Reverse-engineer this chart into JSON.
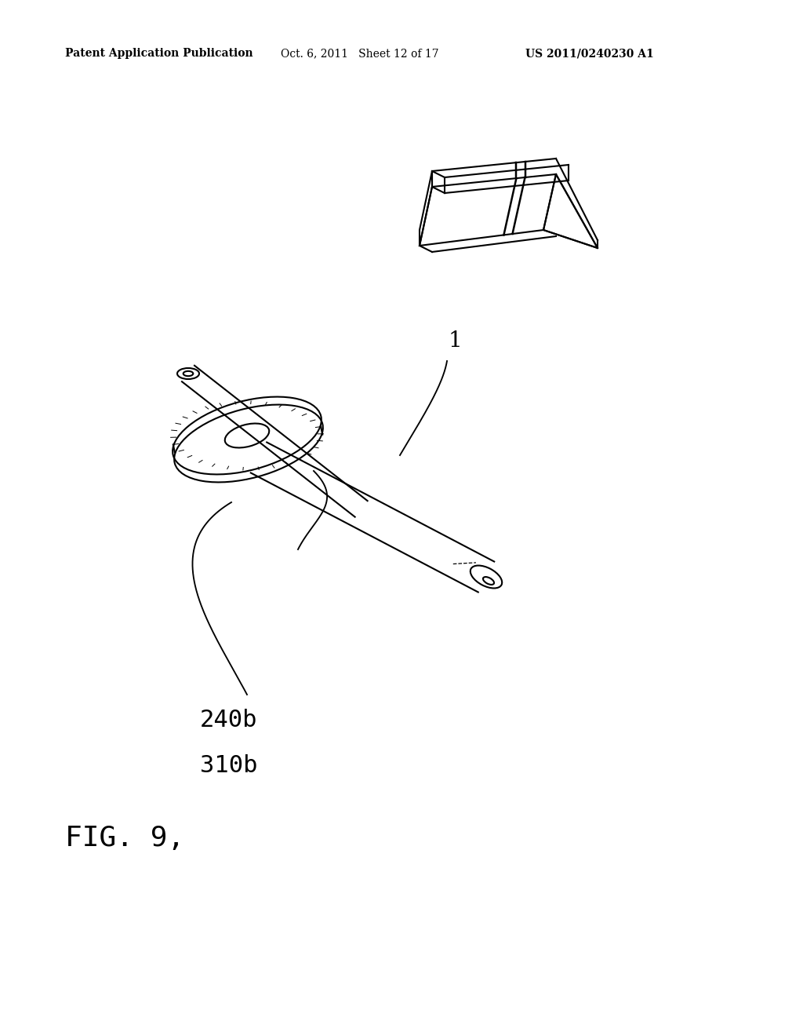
{
  "background_color": "#ffffff",
  "header_left": "Patent Application Publication",
  "header_center": "Oct. 6, 2011   Sheet 12 of 17",
  "header_right": "US 2011/0240230 A1",
  "header_fontsize": 10,
  "label_240b": "240b",
  "label_310b": "310b",
  "label_1": "1",
  "fig_label": "FIG. 9,",
  "label_fontsize": 22,
  "fig_fontsize": 26
}
